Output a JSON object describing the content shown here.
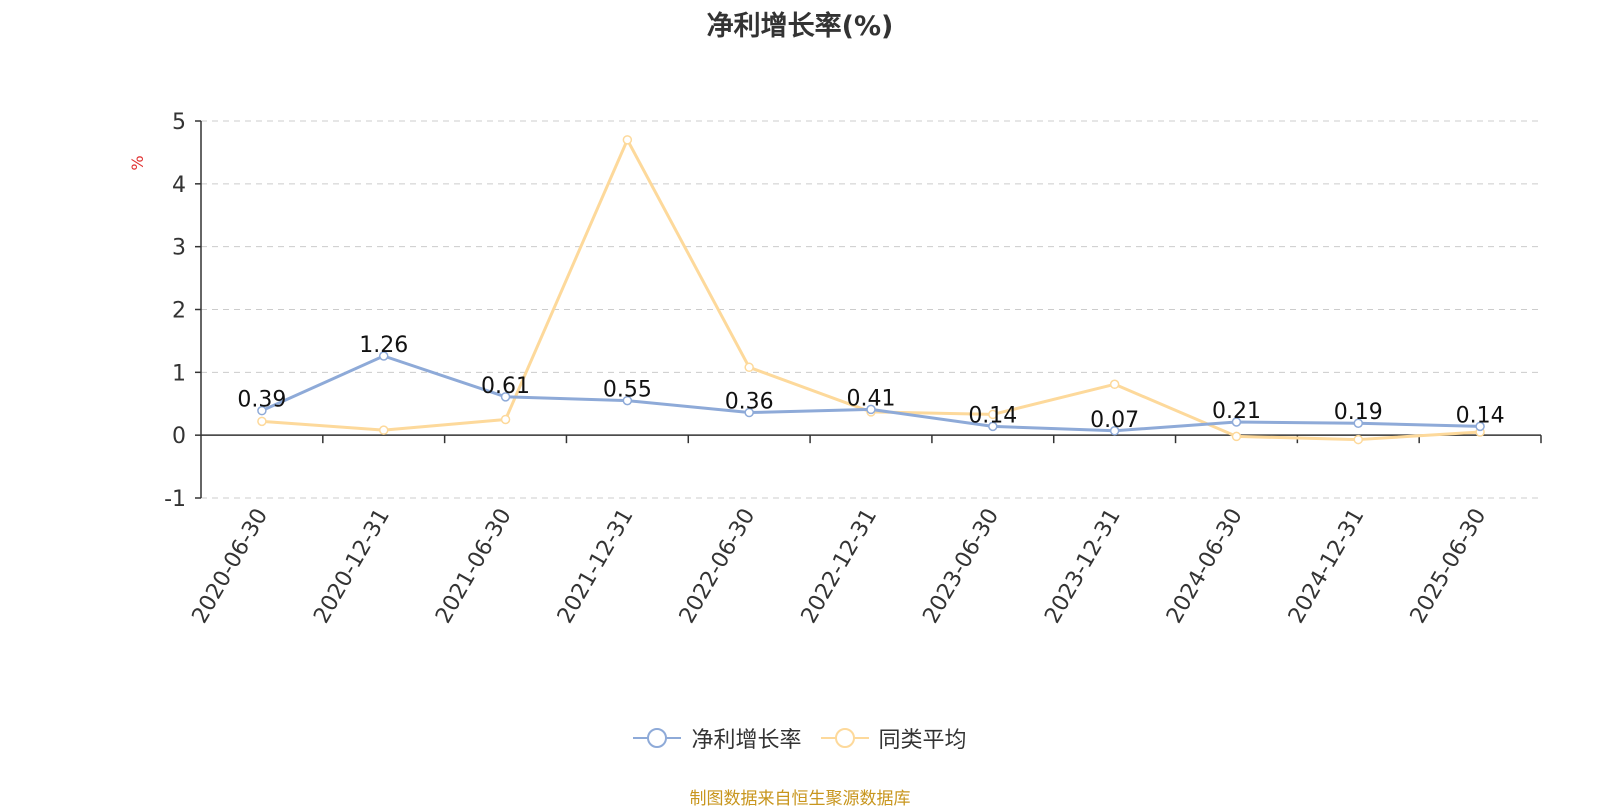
{
  "chart_data": {
    "type": "line",
    "title": "净利增长率(%)",
    "ylabel": "%",
    "categories": [
      "2020-06-30",
      "2020-12-31",
      "2021-06-30",
      "2021-12-31",
      "2022-06-30",
      "2022-12-31",
      "2023-06-30",
      "2023-12-31",
      "2024-06-30",
      "2024-12-31",
      "2025-06-30"
    ],
    "series": [
      {
        "name": "净利增长率",
        "color": "#8eaad8",
        "values": [
          0.39,
          1.26,
          0.61,
          0.55,
          0.36,
          0.41,
          0.14,
          0.07,
          0.21,
          0.19,
          0.14
        ],
        "labels": [
          "0.39",
          "1.26",
          "0.61",
          "0.55",
          "0.36",
          "0.41",
          "0.14",
          "0.07",
          "0.21",
          "0.19",
          "0.14"
        ]
      },
      {
        "name": "同类平均",
        "color": "#fdd99b",
        "values": [
          0.22,
          0.08,
          0.25,
          4.7,
          1.08,
          0.37,
          0.33,
          0.81,
          -0.02,
          -0.07,
          0.05
        ]
      }
    ],
    "ylim": [
      -1,
      5
    ],
    "yticks": [
      "-1",
      "0",
      "1",
      "2",
      "3",
      "4",
      "5"
    ],
    "grid": true,
    "legend_position": "bottom"
  },
  "source_note": "制图数据来自恒生聚源数据库"
}
